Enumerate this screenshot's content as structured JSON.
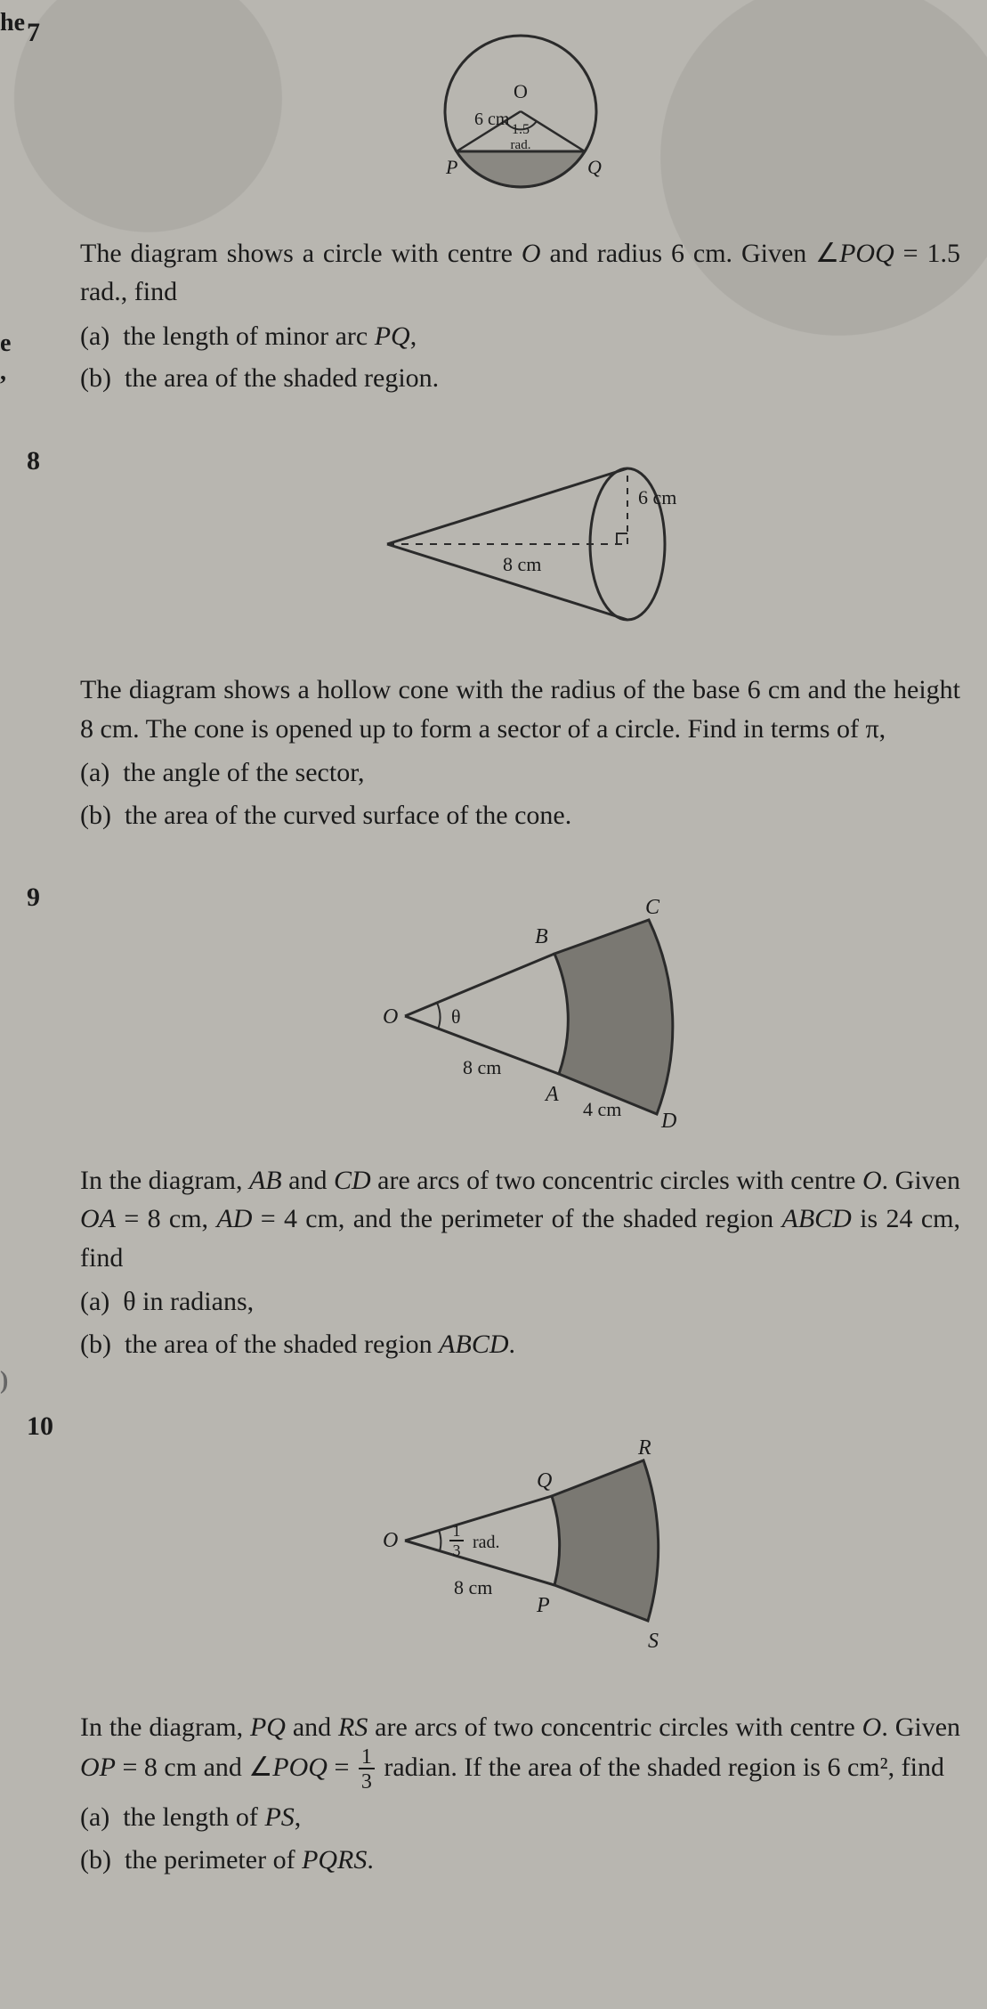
{
  "edge": {
    "he": "he",
    "e_comma": "e\n,",
    "ten_prefix": ")"
  },
  "problems": [
    {
      "num": "7",
      "diagram": {
        "type": "circle-segment",
        "radius_label": "6 cm",
        "center_label": "O",
        "angle_label": "1.5",
        "angle_unit": "rad.",
        "point_left": "P",
        "point_right": "Q",
        "circle_stroke": "#2a2a2a",
        "fill_shaded": "#8a8882",
        "bg": "#b8b6b0"
      },
      "intro_html": "The diagram shows a circle with centre <i>O</i> and radius 6 cm. Given ∠<i>POQ</i> = 1.5 rad., find",
      "parts": [
        {
          "label": "(a)",
          "text_html": "the length of minor arc <i>PQ</i>,"
        },
        {
          "label": "(b)",
          "text_html": "the area of the shaded region."
        }
      ]
    },
    {
      "num": "8",
      "diagram": {
        "type": "cone",
        "radius_label": "6 cm",
        "height_label": "8 cm",
        "stroke": "#2a2a2a",
        "bg": "#b8b6b0"
      },
      "intro_html": "The diagram shows a hollow cone with the radius of the base 6 cm and the height 8 cm. The cone is opened up to form a sector of a circle. Find in terms of π,",
      "parts": [
        {
          "label": "(a)",
          "text_html": "the angle of the sector,"
        },
        {
          "label": "(b)",
          "text_html": "the area of the curved surface of the cone."
        }
      ]
    },
    {
      "num": "9",
      "diagram": {
        "type": "annulus-sector",
        "O": "O",
        "A": "A",
        "B": "B",
        "C": "C",
        "D": "D",
        "theta": "θ",
        "inner_label": "8 cm",
        "ad_label": "4 cm",
        "stroke": "#2a2a2a",
        "fill_shaded": "#7a7872",
        "bg": "#b8b6b0"
      },
      "intro_html": "In the diagram, <i>AB</i> and <i>CD</i> are arcs of two concentric circles with centre <i>O</i>. Given <i>OA</i> = 8 cm, <i>AD</i> = 4 cm, and the perimeter of the shaded region <i>ABCD</i> is 24 cm, find",
      "parts": [
        {
          "label": "(a)",
          "text_html": "θ in radians,"
        },
        {
          "label": "(b)",
          "text_html": "the area of the shaded region <i>ABCD</i>."
        }
      ]
    },
    {
      "num": "10",
      "diagram": {
        "type": "annulus-sector-2",
        "O": "O",
        "P": "P",
        "Q": "Q",
        "R": "R",
        "S": "S",
        "angle_frac_n": "1",
        "angle_frac_d": "3",
        "rad": "rad.",
        "inner_label": "8 cm",
        "stroke": "#2a2a2a",
        "fill_shaded": "#7a7872",
        "bg": "#b8b6b0"
      },
      "intro_html": "In the diagram, <i>PQ</i> and <i>RS</i> are arcs of two concentric circles with centre <i>O</i>. Given <i>OP</i> = 8 cm and ∠<i>POQ</i> = {FRAC13} radian. If the area of the shaded region is 6 cm², find",
      "parts": [
        {
          "label": "(a)",
          "text_html": "the length of <i>PS</i>,"
        },
        {
          "label": "(b)",
          "text_html": "the perimeter of <i>PQRS</i>."
        }
      ]
    }
  ]
}
